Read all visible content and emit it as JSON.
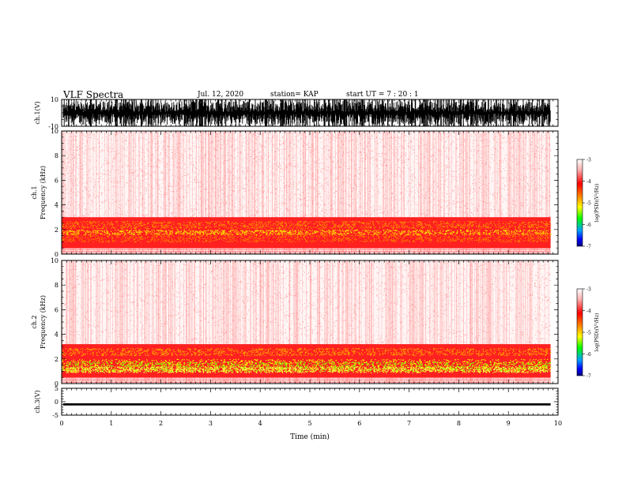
{
  "header": {
    "title": "VLF Spectra",
    "date": "Jul. 12, 2020",
    "station": "station= KAP",
    "start_ut": "start  UT  =   7 : 20 : 1"
  },
  "chart_data": [
    {
      "type": "line",
      "name": "ch1-waveform",
      "ylabel": "ch.1(V)",
      "ylim": [
        -10,
        10
      ],
      "yticks": [
        10,
        -10
      ],
      "description_range": [
        -8,
        8
      ]
    },
    {
      "type": "heatmap",
      "name": "ch1-spectrogram",
      "ylabel": "ch.1\nFrequency (kHz)",
      "ylabel_line1": "ch.1",
      "ylabel_line2": "Frequency (kHz)",
      "ylim": [
        0,
        10
      ],
      "yticks": [
        0,
        2,
        4,
        6,
        8,
        10
      ],
      "intense_band_khz": [
        0.5,
        3.0
      ],
      "colorbar": {
        "label": "log(PSD)(V²/Hz)",
        "range": [
          -7,
          -3
        ],
        "ticks": [
          -3,
          -4,
          -5,
          -6,
          -7
        ]
      }
    },
    {
      "type": "heatmap",
      "name": "ch2-spectrogram",
      "ylabel_line1": "ch.2",
      "ylabel_line2": "Frequency (kHz)",
      "ylim": [
        0,
        10
      ],
      "yticks": [
        0,
        2,
        4,
        6,
        8,
        10
      ],
      "intense_band_khz": [
        0.5,
        3.2
      ],
      "colorbar": {
        "label": "log(PSD)(V²/Hz)",
        "range": [
          -7,
          -3
        ],
        "ticks": [
          -3,
          -4,
          -5,
          -6,
          -7
        ]
      }
    },
    {
      "type": "line",
      "name": "ch3-waveform",
      "ylabel": "ch.3(V)",
      "ylim": [
        -5,
        5
      ],
      "yticks": [
        5,
        0,
        -5
      ],
      "level_range": [
        -1.4,
        -0.6
      ]
    }
  ],
  "xaxis": {
    "xlabel": "Time (min)",
    "xlim": [
      0,
      10
    ],
    "xticks": [
      0,
      1,
      2,
      3,
      4,
      5,
      6,
      7,
      8,
      9,
      10
    ],
    "data_end": 9.85
  },
  "colors": {
    "waveform": "#000000",
    "colormap": [
      "#000080",
      "#0000ff",
      "#00a0ff",
      "#00ff00",
      "#ffff00",
      "#ff8000",
      "#ff0000",
      "#ffffff"
    ]
  }
}
